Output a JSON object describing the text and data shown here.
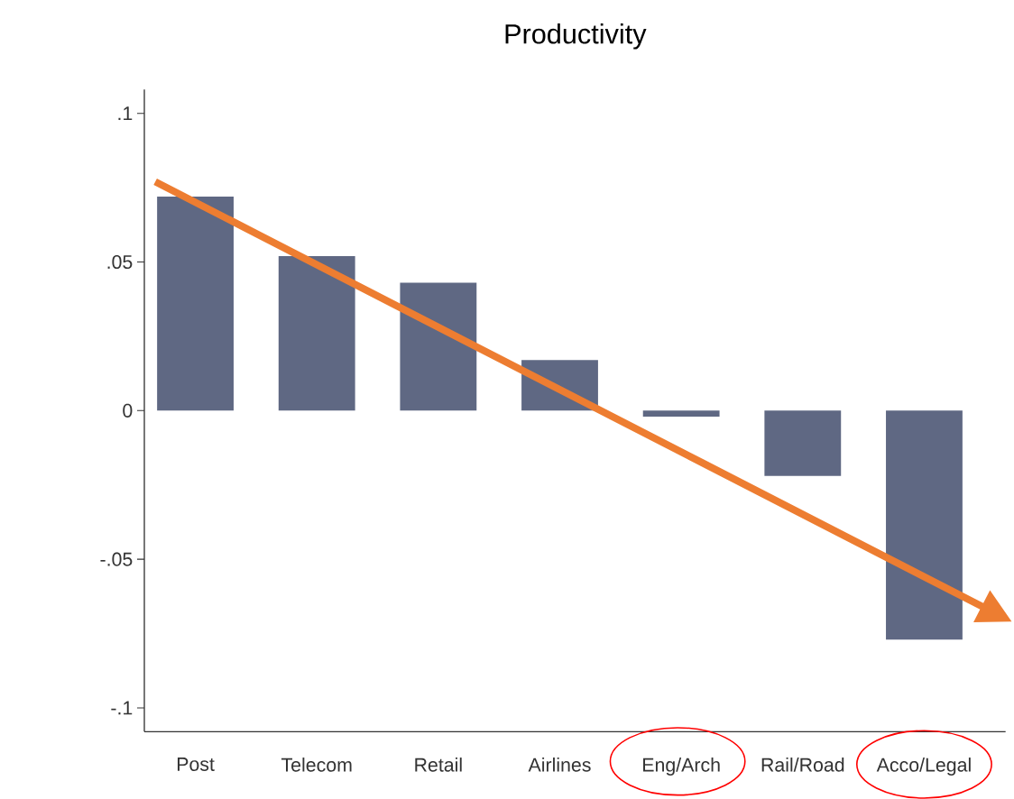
{
  "chart_data": {
    "type": "bar",
    "title": "Productivity",
    "categories": [
      "Post",
      "Telecom",
      "Retail",
      "Airlines",
      "Eng/Arch",
      "Rail/Road",
      "Acco/Legal"
    ],
    "values": [
      0.072,
      0.052,
      0.043,
      0.017,
      -0.002,
      -0.022,
      -0.077
    ],
    "color": "#5f6883",
    "ylim": [
      -0.108,
      0.108
    ],
    "yticks": [
      {
        "value": 0.1,
        "label": ".1"
      },
      {
        "value": 0.05,
        "label": ".05"
      },
      {
        "value": 0,
        "label": "0"
      },
      {
        "value": -0.05,
        "label": "-.05"
      },
      {
        "value": -0.1,
        "label": "-.1"
      }
    ],
    "grid": false
  }
}
